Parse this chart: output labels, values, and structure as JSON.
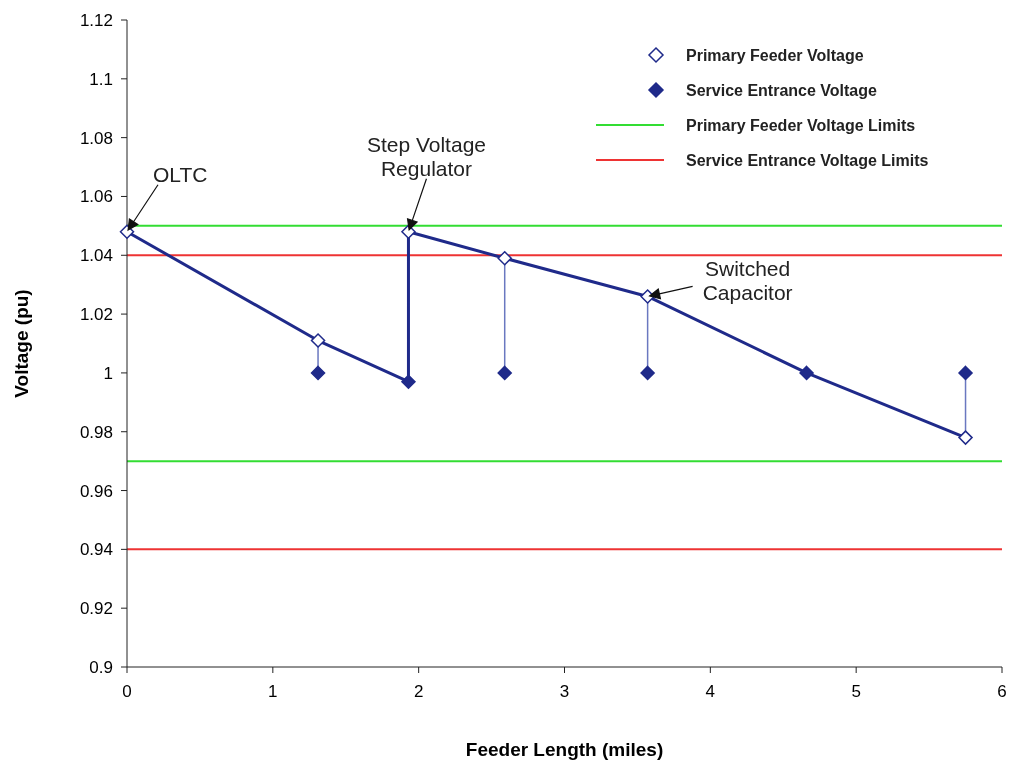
{
  "chart_data": {
    "type": "line",
    "xlabel": "Feeder Length (miles)",
    "ylabel": "Voltage (pu)",
    "xlim": [
      0,
      6
    ],
    "xticks": [
      0,
      1,
      2,
      3,
      4,
      5,
      6
    ],
    "ylim": [
      0.9,
      1.12
    ],
    "yticks": [
      0.9,
      0.92,
      0.94,
      0.96,
      0.98,
      1,
      1.02,
      1.04,
      1.06,
      1.08,
      1.1,
      1.12
    ],
    "legend": "top right",
    "grid": false,
    "marker": "diamond",
    "series": [
      {
        "color": "#1f2a8a",
        "marker": "none",
        "x": [
          0,
          1.31,
          1.93,
          1.93,
          2.59,
          3.57,
          4.66,
          5.75
        ],
        "values": [
          1.048,
          1.011,
          0.997,
          1.048,
          1.039,
          1.026,
          1.0,
          0.978
        ]
      },
      {
        "color": "#6a78c0",
        "marker": "none",
        "x": [
          1.31,
          1.31
        ],
        "values": [
          1.011,
          1.0
        ]
      },
      {
        "color": "#6a78c0",
        "marker": "none",
        "x": [
          2.59,
          2.59
        ],
        "values": [
          1.039,
          1.0
        ]
      },
      {
        "color": "#6a78c0",
        "marker": "none",
        "x": [
          3.57,
          3.57
        ],
        "values": [
          1.026,
          1.0
        ]
      },
      {
        "color": "#6a78c0",
        "marker": "none",
        "x": [
          5.75,
          5.75
        ],
        "values": [
          0.978,
          1.0
        ]
      },
      {
        "type": "scatter",
        "name": "Primary Feeder Voltage",
        "color": "#1f2a8a",
        "x": [
          0,
          1.31,
          1.93,
          2.59,
          3.57,
          5.75
        ],
        "values": [
          1.048,
          1.011,
          1.048,
          1.039,
          1.026,
          0.978
        ]
      },
      {
        "type": "scatter",
        "name": "Service Entrance Voltage",
        "color": "#1f2a8a",
        "x": [
          1.31,
          1.93,
          2.59,
          3.57,
          4.66,
          5.75
        ],
        "values": [
          1.0,
          0.997,
          1.0,
          1.0,
          1.0,
          1.0
        ]
      }
    ],
    "ref_lines": [
      {
        "axis": "y",
        "value": 1.05,
        "label": "Primary Feeder Voltage Limits",
        "color": "#33dd33"
      },
      {
        "axis": "y",
        "value": 0.97,
        "label": null,
        "color": "#33dd33"
      },
      {
        "axis": "y",
        "value": 1.04,
        "label": "Service Entrance Voltage Limits",
        "color": "#ee3333"
      },
      {
        "axis": "y",
        "value": 0.94,
        "label": null,
        "color": "#ee3333"
      }
    ],
    "annotations": [
      {
        "text": "OLTC",
        "x": 0,
        "y": 1.048
      },
      {
        "text": "Step Voltage\nRegulator",
        "x": 1.93,
        "y": 1.048
      },
      {
        "text": "Switched\nCapacitor",
        "x": 3.57,
        "y": 1.026
      }
    ]
  }
}
